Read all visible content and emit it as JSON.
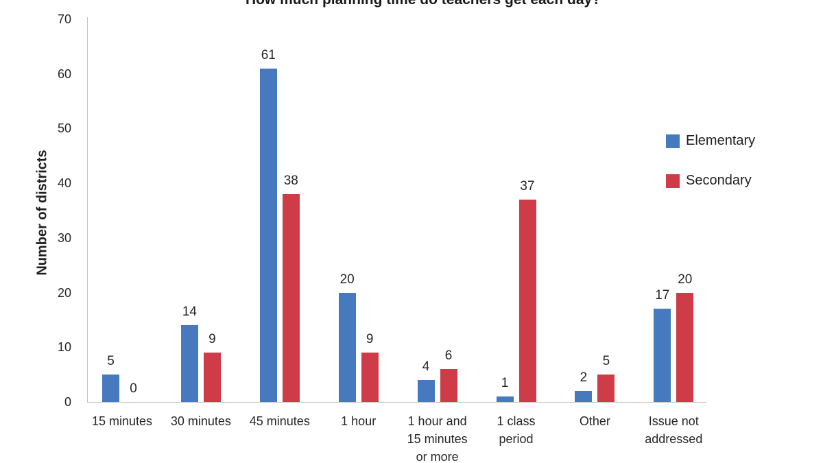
{
  "chart_data": {
    "type": "bar",
    "title": "How much planning time do teachers get each day?",
    "xlabel": "",
    "ylabel": "Number of districts",
    "categories": [
      "15 minutes",
      "30 minutes",
      "45 minutes",
      "1 hour",
      "1 hour and 15 minutes or more",
      "1 class period",
      "Other",
      "Issue not addressed"
    ],
    "series": [
      {
        "name": "Elementary",
        "color": "#4679BD",
        "values": [
          5,
          14,
          61,
          20,
          4,
          1,
          2,
          17
        ]
      },
      {
        "name": "Secondary",
        "color": "#CE3D47",
        "values": [
          0,
          9,
          38,
          9,
          6,
          37,
          5,
          20
        ]
      }
    ],
    "ylim": [
      0,
      70
    ],
    "yticks": [
      0,
      10,
      20,
      30,
      40,
      50,
      60,
      70
    ],
    "grid": false,
    "legend_position": "right",
    "data_labels": true
  }
}
